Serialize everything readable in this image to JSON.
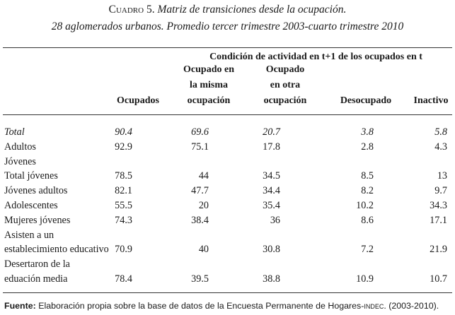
{
  "caption": {
    "label": "Cuadro 5.",
    "title": "Matriz de transiciones desde la ocupación.",
    "subtitle": "28 aglomerados urbanos. Promedio tercer trimestre 2003-cuarto trimestre 2010"
  },
  "header": {
    "group": "Condición de actividad en t+1 de los ocupados en t",
    "columns": [
      [
        "Ocupados"
      ],
      [
        "Ocupado en",
        "la misma",
        "ocupación"
      ],
      [
        "Ocupado",
        "en otra",
        "ocupación"
      ],
      [
        "Desocupado"
      ],
      [
        "Inactivo"
      ]
    ]
  },
  "rows": [
    {
      "label": [
        "Total"
      ],
      "values": [
        "90.4",
        "69.6",
        "20.7",
        "3.8",
        "5.8"
      ]
    },
    {
      "label": [
        "Adultos"
      ],
      "values": [
        "92.9",
        "75.1",
        "17.8",
        "2.8",
        "4.3"
      ]
    },
    {
      "label": [
        "Jóvenes"
      ],
      "values": [
        "",
        "",
        "",
        "",
        ""
      ]
    },
    {
      "label": [
        "Total jóvenes"
      ],
      "values": [
        "78.5",
        "44",
        "34.5",
        "8.5",
        "13"
      ]
    },
    {
      "label": [
        "Jóvenes adultos"
      ],
      "values": [
        "82.1",
        "47.7",
        "34.4",
        "8.2",
        "9.7"
      ]
    },
    {
      "label": [
        "Adolescentes"
      ],
      "values": [
        "55.5",
        "20",
        "35.4",
        "10.2",
        "34.3"
      ]
    },
    {
      "label": [
        "Mujeres jóvenes"
      ],
      "values": [
        "74.3",
        "38.4",
        "36",
        "8.6",
        "17.1"
      ]
    },
    {
      "label": [
        "Asisten a un",
        "establecimiento educativo"
      ],
      "values": [
        "70.9",
        "40",
        "30.8",
        "7.2",
        "21.9"
      ]
    },
    {
      "label": [
        "Desertaron de la",
        "eduación media"
      ],
      "values": [
        "78.4",
        "39.5",
        "38.8",
        "10.9",
        "10.7"
      ]
    }
  ],
  "source": {
    "label": "Fuente:",
    "text": "Elaboración propia sobre la base de datos de la Encuesta Permanente de Hogares-",
    "abbr": "indec",
    "tail": ". (2003-2010)."
  }
}
